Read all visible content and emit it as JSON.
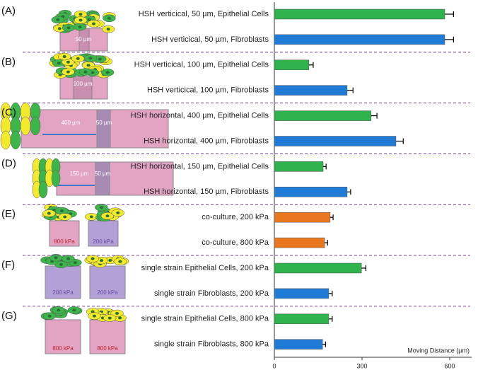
{
  "chart_data": {
    "type": "bar",
    "orientation": "horizontal",
    "categories": [
      "HSH verticical, 50 µm, Epithelial Cells",
      "HSH verticical, 50 µm, Fibroblasts",
      "HSH verticical, 100 µm, Epithelial Cells",
      "HSH verticical, 100 µm, Fibroblasts",
      "HSH horizontal, 400 µm, Epithelial Cells",
      "HSH horizontal, 400 µm, Fibroblasts",
      "HSH horizontal, 150 µm, Epithelial Cells",
      "HSH horizontal, 150 µm, Fibroblasts",
      "co-culture, 200 kPa",
      "co-culture, 800 kPa",
      "single strain Epithelial Cells, 200 kPa",
      "single strain Fibroblasts, 200 kPa",
      "single strain Epithelial Cells, 800 kPa",
      "single strain Fibroblasts, 800 kPa"
    ],
    "values": [
      583,
      583,
      118,
      249,
      331,
      416,
      167,
      249,
      191,
      172,
      298,
      186,
      186,
      165
    ],
    "errors": [
      30,
      30,
      15,
      20,
      20,
      25,
      10,
      12,
      10,
      10,
      15,
      12,
      12,
      10
    ],
    "colors": [
      "#2fb34c",
      "#1f7bd6",
      "#2fb34c",
      "#1f7bd6",
      "#2fb34c",
      "#1f7bd6",
      "#2fb34c",
      "#1f7bd6",
      "#e8771f",
      "#e8771f",
      "#2fb34c",
      "#1f7bd6",
      "#2fb34c",
      "#1f7bd6"
    ],
    "xlim": [
      0,
      675
    ],
    "xticks": [
      0,
      300,
      600
    ],
    "x_label": "Moving Distance (µm)"
  },
  "panels": [
    {
      "label": "(A)",
      "texts": [
        "50 µm"
      ]
    },
    {
      "label": "(B)",
      "texts": [
        "100 µm"
      ]
    },
    {
      "label": "(C)",
      "texts": [
        "400 µm",
        "50 µm"
      ]
    },
    {
      "label": "(D)",
      "texts": [
        "150 µm",
        "50 µm"
      ]
    },
    {
      "label": "(E)",
      "texts": [
        "800 kPa",
        "200 kPa"
      ]
    },
    {
      "label": "(F)",
      "texts": [
        "200 kPa",
        "200 kPa"
      ]
    },
    {
      "label": "(G)",
      "texts": [
        "800 kPa",
        "800 kPa"
      ]
    }
  ]
}
